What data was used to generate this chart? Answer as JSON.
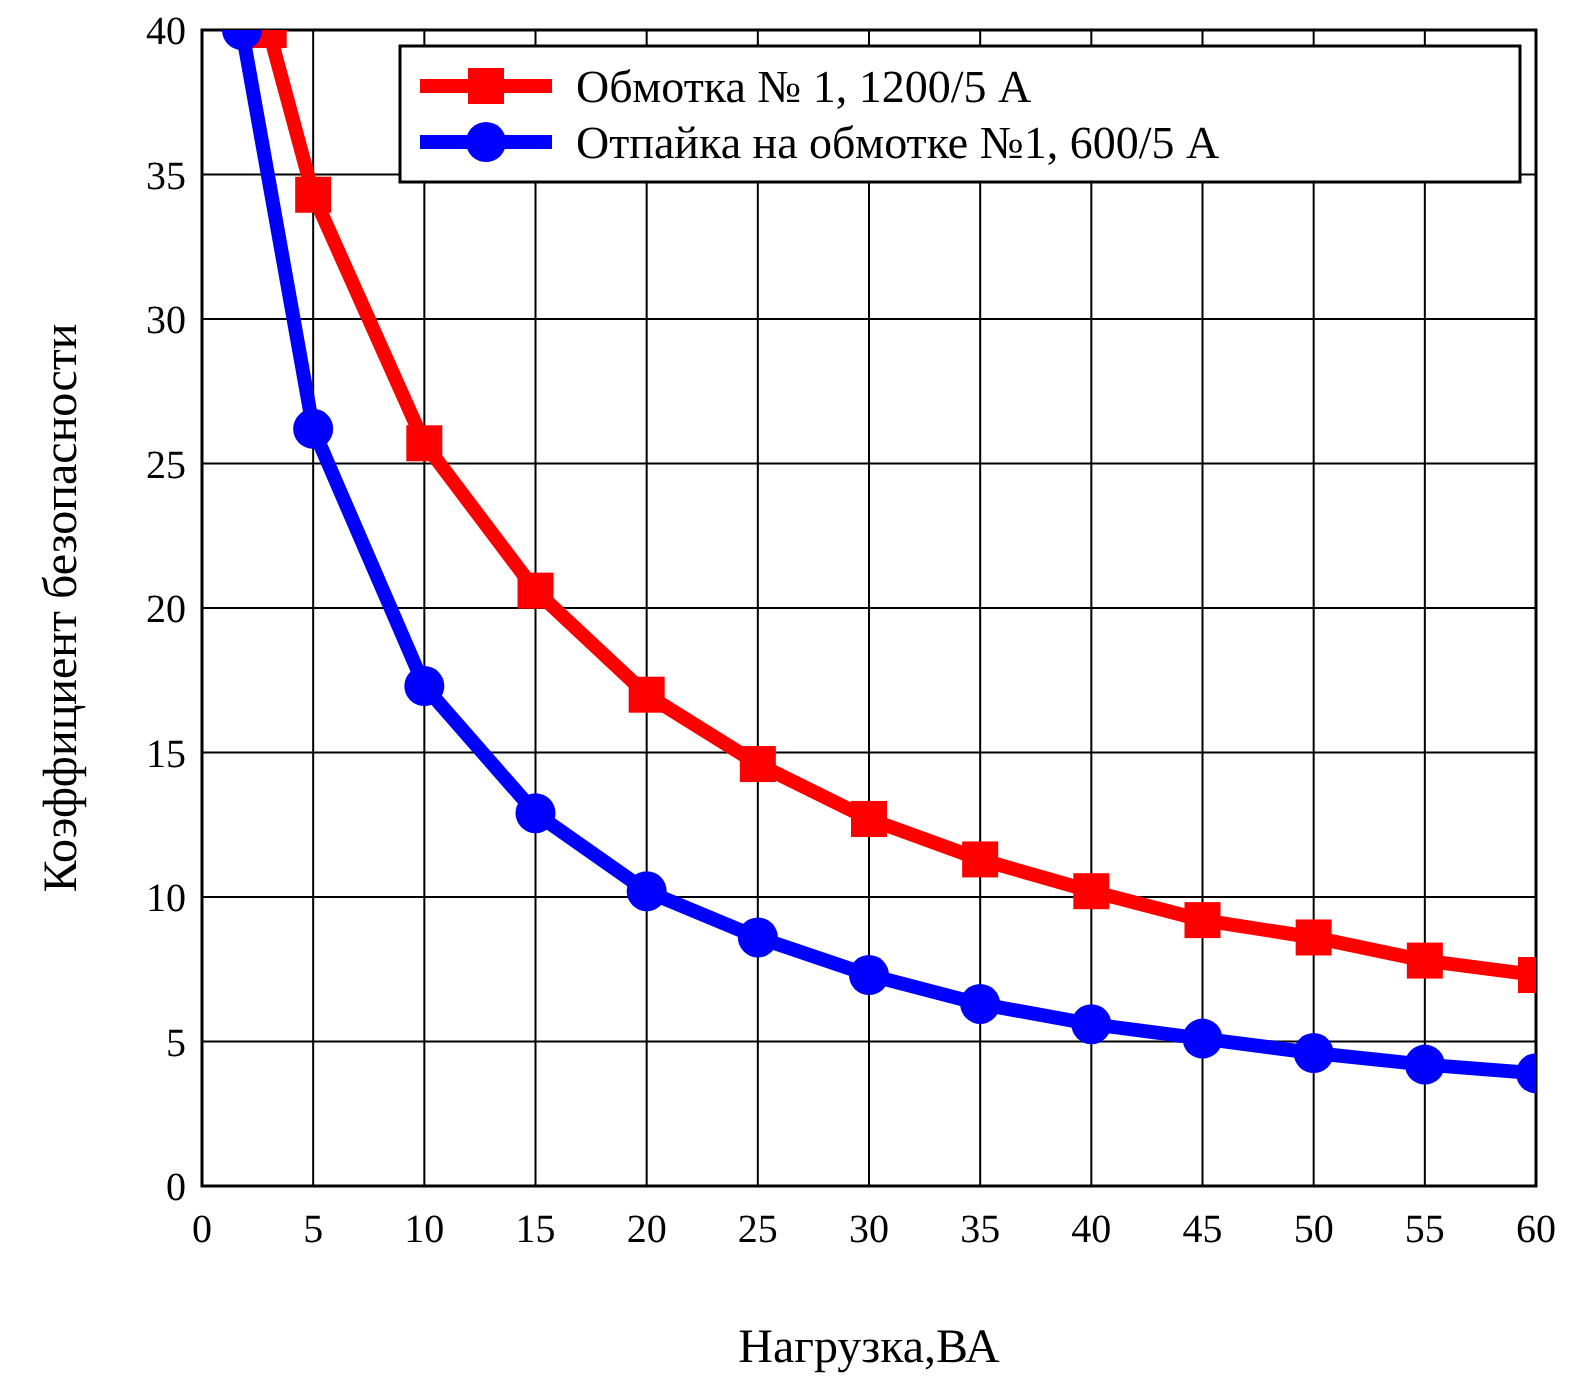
{
  "chart_data": {
    "type": "line",
    "xlabel": "Нагрузка,ВА",
    "ylabel": "Коэффициент безопасности",
    "xlim": [
      0,
      60
    ],
    "xticks": [
      0,
      5,
      10,
      15,
      20,
      25,
      30,
      35,
      40,
      45,
      50,
      55,
      60
    ],
    "ylim": [
      0,
      40
    ],
    "yticks": [
      0,
      5,
      10,
      15,
      20,
      25,
      30,
      35,
      40
    ],
    "grid": true,
    "legend": "top right",
    "series": [
      {
        "name": "Обмотка № 1, 1200/5 А",
        "color": "#ff0000",
        "marker": "square",
        "x": [
          3,
          5,
          10,
          15,
          20,
          25,
          30,
          35,
          40,
          45,
          50,
          55,
          60
        ],
        "values": [
          40,
          34.3,
          25.7,
          20.6,
          17.0,
          14.6,
          12.7,
          11.3,
          10.2,
          9.2,
          8.6,
          7.8,
          7.3
        ]
      },
      {
        "name": "Отпайка на обмотке №1, 600/5 А",
        "color": "#0000ff",
        "marker": "circle",
        "x": [
          1.8,
          5,
          10,
          15,
          20,
          25,
          30,
          35,
          40,
          45,
          50,
          55,
          60
        ],
        "values": [
          40,
          26.2,
          17.3,
          12.9,
          10.2,
          8.6,
          7.3,
          6.3,
          5.6,
          5.1,
          4.6,
          4.2,
          3.9
        ]
      }
    ]
  }
}
